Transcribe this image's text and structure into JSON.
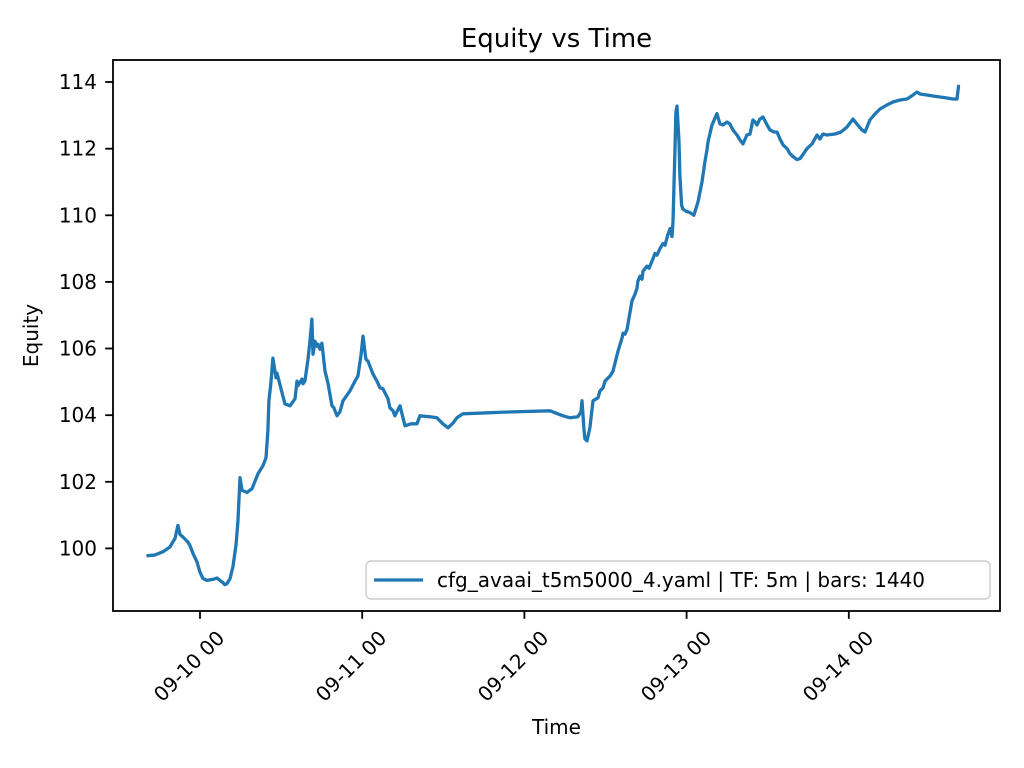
{
  "figure": {
    "background": "#ffffff",
    "accent_color": "#1f77b4",
    "frame_color": "#000000",
    "legend_border_color": "#cccccc"
  },
  "chart_data": {
    "type": "line",
    "title": "Equity vs Time",
    "xlabel": "Time",
    "ylabel": "Equity",
    "x_tick_labels": [
      "09-10 00",
      "09-11 00",
      "09-12 00",
      "09-13 00",
      "09-14 00"
    ],
    "x_ticks_days": [
      0,
      1,
      2,
      3,
      4
    ],
    "y_tick_labels": [
      "100",
      "102",
      "104",
      "106",
      "108",
      "110",
      "112",
      "114"
    ],
    "y_ticks": [
      100,
      102,
      104,
      106,
      108,
      110,
      112,
      114
    ],
    "xlim": [
      -0.536,
      4.932
    ],
    "ylim": [
      98.12,
      114.66
    ],
    "grid": false,
    "legend_position": "lower right",
    "legend": {
      "label": "cfg_avaai_t5m5000_4.yaml | TF: 5m | bars: 1440"
    },
    "series": [
      {
        "name": "cfg_avaai_t5m5000_4.yaml | TF: 5m | bars: 1440",
        "color": "#1f77b4",
        "x_unit": "days since 09-10 00:00",
        "points": [
          [
            -0.321,
            99.78
          ],
          [
            -0.277,
            99.8
          ],
          [
            -0.228,
            99.9
          ],
          [
            -0.185,
            100.04
          ],
          [
            -0.154,
            100.3
          ],
          [
            -0.142,
            100.55
          ],
          [
            -0.136,
            100.69
          ],
          [
            -0.123,
            100.42
          ],
          [
            -0.105,
            100.34
          ],
          [
            -0.074,
            100.19
          ],
          [
            -0.062,
            100.09
          ],
          [
            -0.043,
            99.85
          ],
          [
            -0.018,
            99.59
          ],
          [
            0.0,
            99.29
          ],
          [
            0.018,
            99.1
          ],
          [
            0.043,
            99.04
          ],
          [
            0.08,
            99.07
          ],
          [
            0.105,
            99.11
          ],
          [
            0.123,
            99.04
          ],
          [
            0.142,
            98.97
          ],
          [
            0.154,
            98.91
          ],
          [
            0.166,
            98.94
          ],
          [
            0.185,
            99.09
          ],
          [
            0.203,
            99.44
          ],
          [
            0.222,
            100.1
          ],
          [
            0.234,
            100.8
          ],
          [
            0.247,
            102.12
          ],
          [
            0.259,
            101.74
          ],
          [
            0.29,
            101.68
          ],
          [
            0.321,
            101.79
          ],
          [
            0.358,
            102.24
          ],
          [
            0.388,
            102.48
          ],
          [
            0.407,
            102.72
          ],
          [
            0.419,
            103.53
          ],
          [
            0.425,
            104.43
          ],
          [
            0.438,
            105.0
          ],
          [
            0.45,
            105.71
          ],
          [
            0.469,
            105.12
          ],
          [
            0.475,
            105.26
          ],
          [
            0.524,
            104.34
          ],
          [
            0.555,
            104.28
          ],
          [
            0.586,
            104.49
          ],
          [
            0.598,
            105.02
          ],
          [
            0.604,
            104.88
          ],
          [
            0.629,
            105.08
          ],
          [
            0.635,
            104.94
          ],
          [
            0.647,
            105.02
          ],
          [
            0.666,
            105.68
          ],
          [
            0.678,
            106.2
          ],
          [
            0.69,
            106.88
          ],
          [
            0.697,
            105.83
          ],
          [
            0.709,
            106.22
          ],
          [
            0.721,
            106.07
          ],
          [
            0.728,
            106.13
          ],
          [
            0.74,
            105.98
          ],
          [
            0.752,
            106.16
          ],
          [
            0.771,
            105.32
          ],
          [
            0.789,
            104.97
          ],
          [
            0.814,
            104.28
          ],
          [
            0.826,
            104.22
          ],
          [
            0.845,
            103.98
          ],
          [
            0.863,
            104.1
          ],
          [
            0.882,
            104.43
          ],
          [
            0.925,
            104.73
          ],
          [
            0.956,
            105.02
          ],
          [
            0.974,
            105.17
          ],
          [
            0.993,
            105.8
          ],
          [
            1.005,
            106.37
          ],
          [
            1.023,
            105.68
          ],
          [
            1.036,
            105.62
          ],
          [
            1.067,
            105.23
          ],
          [
            1.091,
            105.02
          ],
          [
            1.11,
            104.82
          ],
          [
            1.128,
            104.79
          ],
          [
            1.159,
            104.49
          ],
          [
            1.171,
            104.22
          ],
          [
            1.19,
            104.13
          ],
          [
            1.202,
            103.98
          ],
          [
            1.233,
            104.28
          ],
          [
            1.264,
            103.68
          ],
          [
            1.301,
            103.74
          ],
          [
            1.338,
            103.74
          ],
          [
            1.356,
            103.98
          ],
          [
            1.418,
            103.95
          ],
          [
            1.461,
            103.92
          ],
          [
            1.498,
            103.74
          ],
          [
            1.529,
            103.62
          ],
          [
            1.56,
            103.76
          ],
          [
            1.584,
            103.92
          ],
          [
            1.621,
            104.04
          ],
          [
            1.88,
            104.09
          ],
          [
            2.158,
            104.13
          ],
          [
            2.238,
            103.98
          ],
          [
            2.281,
            103.92
          ],
          [
            2.33,
            103.95
          ],
          [
            2.349,
            104.1
          ],
          [
            2.355,
            104.43
          ],
          [
            2.367,
            103.6
          ],
          [
            2.373,
            103.29
          ],
          [
            2.386,
            103.23
          ],
          [
            2.404,
            103.62
          ],
          [
            2.423,
            104.43
          ],
          [
            2.454,
            104.52
          ],
          [
            2.466,
            104.73
          ],
          [
            2.485,
            104.82
          ],
          [
            2.497,
            105.02
          ],
          [
            2.528,
            105.17
          ],
          [
            2.546,
            105.32
          ],
          [
            2.577,
            105.92
          ],
          [
            2.602,
            106.31
          ],
          [
            2.608,
            106.46
          ],
          [
            2.62,
            106.43
          ],
          [
            2.633,
            106.58
          ],
          [
            2.663,
            107.42
          ],
          [
            2.682,
            107.63
          ],
          [
            2.694,
            107.81
          ],
          [
            2.7,
            108.02
          ],
          [
            2.713,
            108.17
          ],
          [
            2.725,
            108.08
          ],
          [
            2.731,
            108.32
          ],
          [
            2.756,
            108.47
          ],
          [
            2.768,
            108.41
          ],
          [
            2.787,
            108.62
          ],
          [
            2.805,
            108.85
          ],
          [
            2.817,
            108.8
          ],
          [
            2.836,
            109.0
          ],
          [
            2.854,
            109.15
          ],
          [
            2.867,
            109.1
          ],
          [
            2.885,
            109.42
          ],
          [
            2.898,
            109.6
          ],
          [
            2.91,
            109.36
          ],
          [
            2.916,
            109.81
          ],
          [
            2.928,
            111.9
          ],
          [
            2.934,
            113.1
          ],
          [
            2.941,
            113.28
          ],
          [
            2.953,
            112.2
          ],
          [
            2.959,
            111.2
          ],
          [
            2.969,
            110.3
          ],
          [
            2.978,
            110.18
          ],
          [
            2.996,
            110.12
          ],
          [
            3.021,
            110.08
          ],
          [
            3.045,
            110.0
          ],
          [
            3.07,
            110.4
          ],
          [
            3.095,
            111.0
          ],
          [
            3.113,
            111.6
          ],
          [
            3.126,
            111.97
          ],
          [
            3.132,
            112.2
          ],
          [
            3.156,
            112.7
          ],
          [
            3.187,
            113.05
          ],
          [
            3.206,
            112.74
          ],
          [
            3.224,
            112.71
          ],
          [
            3.249,
            112.8
          ],
          [
            3.267,
            112.74
          ],
          [
            3.286,
            112.56
          ],
          [
            3.311,
            112.41
          ],
          [
            3.329,
            112.26
          ],
          [
            3.348,
            112.14
          ],
          [
            3.372,
            112.41
          ],
          [
            3.391,
            112.44
          ],
          [
            3.409,
            112.86
          ],
          [
            3.422,
            112.8
          ],
          [
            3.434,
            112.71
          ],
          [
            3.452,
            112.89
          ],
          [
            3.471,
            112.95
          ],
          [
            3.496,
            112.71
          ],
          [
            3.514,
            112.56
          ],
          [
            3.539,
            112.5
          ],
          [
            3.557,
            112.5
          ],
          [
            3.576,
            112.29
          ],
          [
            3.594,
            112.11
          ],
          [
            3.619,
            112.0
          ],
          [
            3.637,
            111.85
          ],
          [
            3.656,
            111.76
          ],
          [
            3.68,
            111.67
          ],
          [
            3.699,
            111.7
          ],
          [
            3.717,
            111.82
          ],
          [
            3.742,
            112.0
          ],
          [
            3.773,
            112.14
          ],
          [
            3.804,
            112.41
          ],
          [
            3.822,
            112.29
          ],
          [
            3.841,
            112.44
          ],
          [
            3.865,
            112.41
          ],
          [
            3.915,
            112.44
          ],
          [
            3.952,
            112.5
          ],
          [
            3.989,
            112.65
          ],
          [
            4.026,
            112.89
          ],
          [
            4.05,
            112.74
          ],
          [
            4.081,
            112.56
          ],
          [
            4.1,
            112.5
          ],
          [
            4.13,
            112.86
          ],
          [
            4.161,
            113.04
          ],
          [
            4.192,
            113.19
          ],
          [
            4.235,
            113.31
          ],
          [
            4.272,
            113.4
          ],
          [
            4.315,
            113.46
          ],
          [
            4.359,
            113.49
          ],
          [
            4.396,
            113.61
          ],
          [
            4.42,
            113.7
          ],
          [
            4.439,
            113.64
          ],
          [
            4.482,
            113.61
          ],
          [
            4.519,
            113.58
          ],
          [
            4.562,
            113.55
          ],
          [
            4.605,
            113.52
          ],
          [
            4.642,
            113.49
          ],
          [
            4.667,
            113.49
          ],
          [
            4.676,
            113.87
          ]
        ]
      }
    ]
  }
}
